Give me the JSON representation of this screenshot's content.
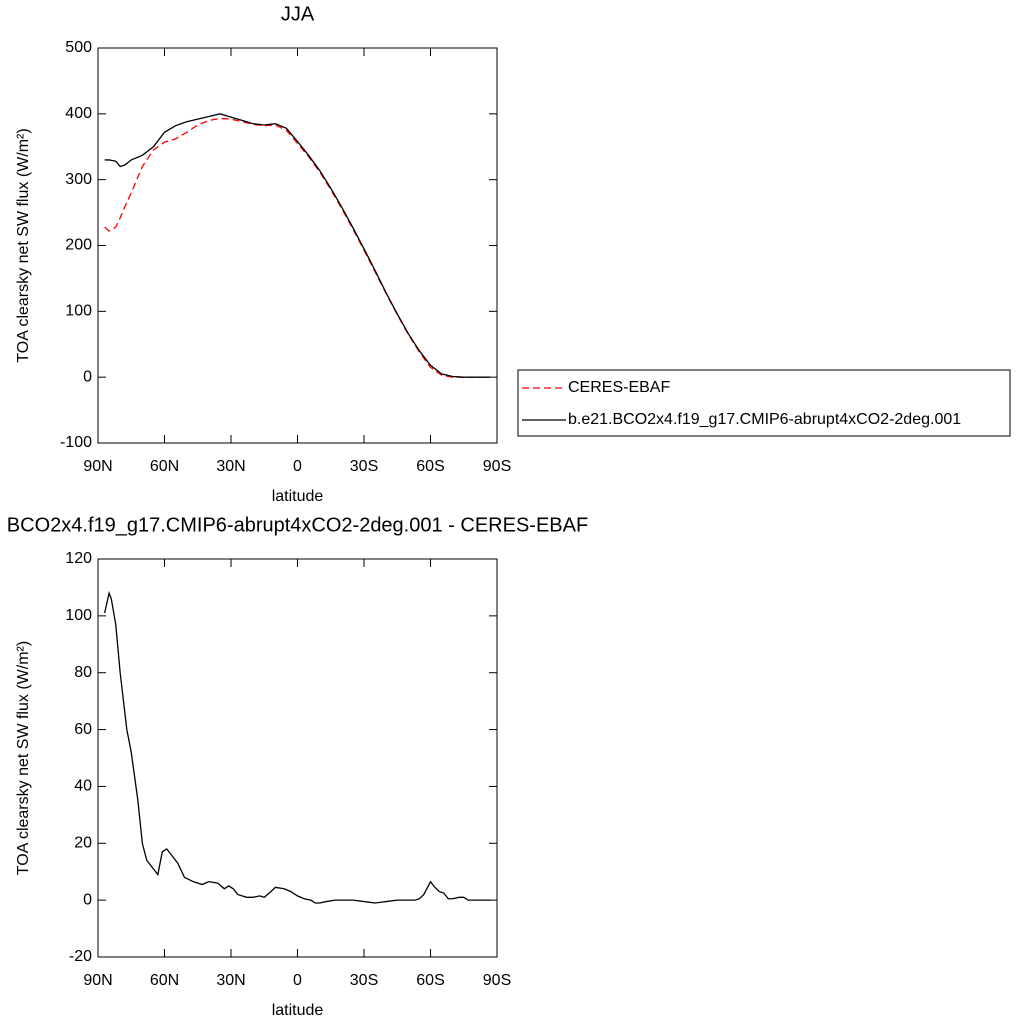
{
  "chart_data": [
    {
      "type": "line",
      "title": "JJA",
      "xlabel": "latitude",
      "ylabel": "TOA clearsky net SW flux (W/m²)",
      "x": [
        87,
        85,
        82,
        80,
        78,
        75,
        70,
        65,
        60,
        55,
        50,
        45,
        40,
        35,
        30,
        25,
        20,
        15,
        10,
        5,
        0,
        -5,
        -10,
        -15,
        -20,
        -25,
        -30,
        -35,
        -40,
        -45,
        -50,
        -55,
        -60,
        -65,
        -70,
        -75,
        -80,
        -85,
        -87
      ],
      "series": [
        {
          "name": "CERES-EBAF",
          "color": "#ff0000",
          "linestyle": "dashed",
          "values": [
            228,
            222,
            228,
            242,
            258,
            280,
            320,
            345,
            357,
            362,
            372,
            383,
            390,
            393,
            392,
            388,
            384,
            382,
            383,
            375,
            355,
            335,
            312,
            285,
            256,
            225,
            193,
            160,
            127,
            95,
            65,
            38,
            15,
            3,
            0,
            0,
            0,
            0,
            0
          ]
        },
        {
          "name": "b.e21.BCO2x4.f19_g17.CMIP6-abrupt4xCO2-2deg.001",
          "color": "#000000",
          "linestyle": "solid",
          "values": [
            330,
            330,
            328,
            320,
            322,
            330,
            337,
            350,
            372,
            382,
            388,
            392,
            396,
            400,
            395,
            390,
            385,
            383,
            385,
            378,
            358,
            337,
            314,
            287,
            258,
            227,
            195,
            162,
            128,
            96,
            66,
            40,
            18,
            5,
            1,
            0,
            0,
            0,
            0
          ]
        }
      ],
      "xlim": [
        90,
        -90
      ],
      "xticks": [
        {
          "value": 90,
          "label": "90N"
        },
        {
          "value": 60,
          "label": "60N"
        },
        {
          "value": 30,
          "label": "30N"
        },
        0,
        {
          "value": -30,
          "label": "30S"
        },
        {
          "value": -60,
          "label": "60S"
        },
        {
          "value": -90,
          "label": "90S"
        }
      ],
      "ylim": [
        -100,
        500
      ],
      "yticks": [
        -100,
        0,
        100,
        200,
        300,
        400,
        500
      ],
      "legend": "right"
    },
    {
      "type": "line",
      "title": "BCO2x4.f19_g17.CMIP6-abrupt4xCO2-2deg.001 - CERES-EBAF",
      "xlabel": "latitude",
      "ylabel": "TOA clearsky net SW flux (W/m²)",
      "x": [
        87,
        85,
        84,
        82,
        80,
        77,
        75,
        72,
        70,
        68,
        65,
        63,
        61,
        59,
        57,
        54,
        51,
        47,
        43,
        40,
        36,
        33,
        31,
        29,
        27,
        23,
        20,
        17,
        15,
        12,
        10,
        6,
        3,
        0,
        -3,
        -6,
        -8,
        -10,
        -13,
        -17,
        -20,
        -25,
        -30,
        -35,
        -40,
        -45,
        -50,
        -53,
        -55,
        -57,
        -60,
        -62,
        -64,
        -66,
        -68,
        -70,
        -73,
        -75,
        -77,
        -80,
        -85,
        -87
      ],
      "series": [
        {
          "color": "#000000",
          "linestyle": "solid",
          "values": [
            101,
            108,
            106,
            97,
            80,
            60,
            52,
            35,
            20,
            14,
            11,
            9,
            17,
            18,
            16,
            13,
            8,
            6.5,
            5.5,
            6.5,
            6,
            4,
            5,
            4,
            2,
            1,
            1,
            1.5,
            1,
            3,
            4.5,
            4,
            3,
            1.5,
            0.5,
            0,
            -1,
            -1,
            -0.5,
            0,
            0,
            0,
            -0.5,
            -1,
            -0.5,
            0,
            0,
            0,
            0.5,
            2,
            6.5,
            4.5,
            3,
            2.5,
            0.5,
            0.5,
            1,
            1,
            0,
            0,
            0,
            0
          ]
        }
      ],
      "xlim": [
        90,
        -90
      ],
      "xticks": [
        {
          "value": 90,
          "label": "90N"
        },
        {
          "value": 60,
          "label": "60N"
        },
        {
          "value": 30,
          "label": "30N"
        },
        0,
        {
          "value": -30,
          "label": "30S"
        },
        {
          "value": -60,
          "label": "60S"
        },
        {
          "value": -90,
          "label": "90S"
        }
      ],
      "ylim": [
        -20,
        120
      ],
      "yticks": [
        -20,
        0,
        20,
        40,
        60,
        80,
        100,
        120
      ]
    }
  ]
}
